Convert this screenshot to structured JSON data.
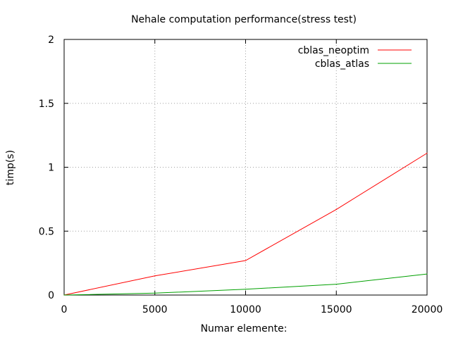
{
  "chart_data": {
    "type": "line",
    "title": "Nehale computation performance(stress test)",
    "xlabel": "Numar elemente:",
    "ylabel": "timp(s)",
    "xlim": [
      0,
      20000
    ],
    "ylim": [
      0,
      2
    ],
    "xticks": [
      "0",
      "5000",
      "10000",
      "15000",
      "20000"
    ],
    "yticks": [
      "0",
      "0.5",
      "1",
      "1.5",
      "2"
    ],
    "grid": true,
    "legend_position": "top-right",
    "series": [
      {
        "name": "cblas_neoptim",
        "color": "#ff0000",
        "x": [
          0,
          5000,
          10000,
          15000,
          20000
        ],
        "values": [
          0,
          0.15,
          0.27,
          0.67,
          1.11
        ]
      },
      {
        "name": "cblas_atlas",
        "color": "#00a000",
        "x": [
          0,
          5000,
          10000,
          15000,
          20000
        ],
        "values": [
          0,
          0.015,
          0.045,
          0.085,
          0.165
        ]
      }
    ]
  }
}
